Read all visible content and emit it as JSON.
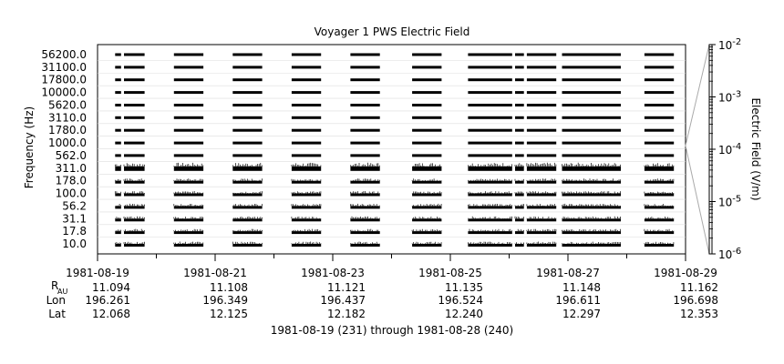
{
  "chart_data": {
    "type": "spectrogram",
    "title": "Voyager 1 PWS Electric Field",
    "ylabel": "Frequency (Hz)",
    "colorbar_label": "Electric Field (V/m)",
    "colorbar_ticks": [
      {
        "base": "10",
        "exp": "-2",
        "value": 0.01
      },
      {
        "base": "10",
        "exp": "-3",
        "value": 0.001
      },
      {
        "base": "10",
        "exp": "-4",
        "value": 0.0001
      },
      {
        "base": "10",
        "exp": "-5",
        "value": 1e-05
      },
      {
        "base": "10",
        "exp": "-6",
        "value": 1e-06
      }
    ],
    "y_scale": "log",
    "frequency_channels": [
      "56200.0",
      "31100.0",
      "17800.0",
      "10000.0",
      "5620.0",
      "3110.0",
      "1780.0",
      "1000.0",
      "562.0",
      "311.0",
      "178.0",
      "100.0",
      "56.2",
      "31.1",
      "17.8",
      "10.0"
    ],
    "x_range": [
      "1981-08-19",
      "1981-08-29"
    ],
    "x_ticks": [
      "1981-08-19",
      "1981-08-21",
      "1981-08-23",
      "1981-08-25",
      "1981-08-27",
      "1981-08-29"
    ],
    "ephemeris": {
      "row_labels": {
        "r_main": "R",
        "r_sub": "AU",
        "lon": "Lon",
        "lat": "Lat"
      },
      "r_au": [
        "11.094",
        "11.108",
        "11.121",
        "11.135",
        "11.148",
        "11.162"
      ],
      "lon": [
        "196.261",
        "196.349",
        "196.437",
        "196.524",
        "196.611",
        "196.698"
      ],
      "lat": [
        "12.068",
        "12.125",
        "12.182",
        "12.240",
        "12.297",
        "12.353"
      ]
    },
    "xlabel": "1981-08-19 (231) through 1981-08-28 (240)",
    "data_intervals_days": [
      [
        0.3,
        0.4
      ],
      [
        0.45,
        0.8
      ],
      [
        1.3,
        1.8
      ],
      [
        2.3,
        2.8
      ],
      [
        3.3,
        3.8
      ],
      [
        4.3,
        4.8
      ],
      [
        5.35,
        5.85
      ],
      [
        6.3,
        7.05
      ],
      [
        7.1,
        7.25
      ],
      [
        7.3,
        7.8
      ],
      [
        7.9,
        8.9
      ],
      [
        9.3,
        9.8
      ]
    ],
    "grid": false,
    "legend": "none"
  }
}
